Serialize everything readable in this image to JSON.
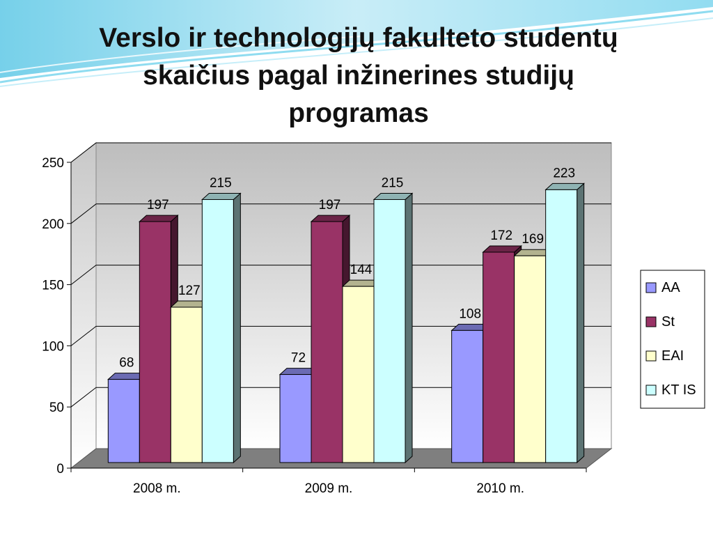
{
  "slide": {
    "title_lines": [
      "Verslo ir technologijų fakulteto studentų",
      "skaičius pagal inžinerines studijų",
      "programas"
    ]
  },
  "chart_data": {
    "type": "bar",
    "title": "",
    "xlabel": "",
    "ylabel": "",
    "ylim": [
      0,
      250
    ],
    "yticks": [
      "0",
      "50",
      "100",
      "150",
      "200",
      "250"
    ],
    "grid": true,
    "legend_position": "right",
    "categories": [
      "2008 m.",
      "2009 m.",
      "2010 m."
    ],
    "series": [
      {
        "name": "AA",
        "values": [
          68,
          72,
          108
        ],
        "color": "#9999ff"
      },
      {
        "name": "St",
        "values": [
          197,
          197,
          172
        ],
        "color": "#993366"
      },
      {
        "name": "EAI",
        "values": [
          127,
          144,
          169
        ],
        "color": "#ffffcc"
      },
      {
        "name": "KT IS",
        "values": [
          215,
          215,
          223
        ],
        "color": "#ccffff"
      }
    ]
  }
}
